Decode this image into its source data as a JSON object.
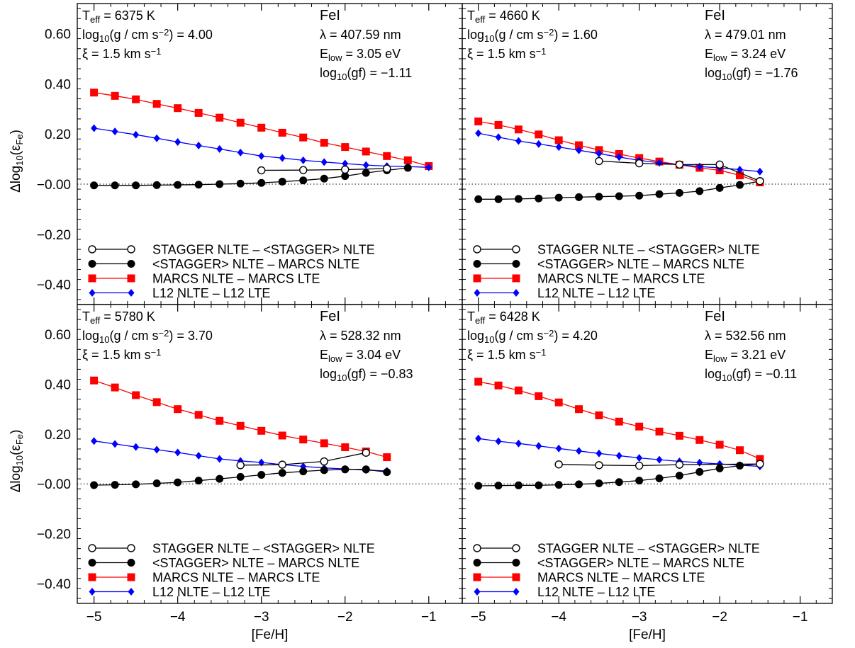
{
  "legend_entries": [
    {
      "label": "STAGGER NLTE – <STAGGER> NLTE",
      "color": "#000000",
      "marker": "open-circle"
    },
    {
      "label": "<STAGGER> NLTE – MARCS NLTE",
      "color": "#000000",
      "marker": "filled-circle"
    },
    {
      "label": "MARCS NLTE – MARCS LTE",
      "color": "#ff0000",
      "marker": "square"
    },
    {
      "label": "L12 NLTE – L12 LTE",
      "color": "#0000ff",
      "marker": "diamond"
    }
  ],
  "chart_data": [
    {
      "type": "line",
      "xlabel": "[Fe/H]",
      "ylabel": "Δlog10(εFe)",
      "xlim": [
        -5.2,
        -0.6
      ],
      "ylim": [
        -0.48,
        0.72
      ],
      "xticks": [
        -5,
        -4,
        -3,
        -2,
        -1
      ],
      "yticks": [
        0.6,
        0.4,
        0.2,
        0.0,
        -0.2,
        -0.4
      ],
      "ytick_labels": [
        "0.60",
        "0.40",
        "0.20",
        "−0.00",
        "−0.20",
        "−0.40"
      ],
      "zero_line": "dotted",
      "grid": false,
      "legend_position": "bottom-left",
      "params": {
        "teff": "T_eff = 6375 K",
        "logg": "log10(g / cm s⁻²) = 4.00",
        "xi": "ξ = 1.5 km s⁻¹"
      },
      "line_info": {
        "species": "FeI",
        "lambda": "λ = 407.59 nm",
        "elow": "E_low =  3.05 eV",
        "loggf": "log10(gf) = −1.11"
      },
      "series": [
        {
          "name": "STAGGER NLTE – <STAGGER> NLTE",
          "x": [
            -3.0,
            -2.5,
            -2.0,
            -1.5
          ],
          "y": [
            0.055,
            0.056,
            0.058,
            0.062
          ]
        },
        {
          "name": "<STAGGER> NLTE – MARCS NLTE",
          "x": [
            -5.0,
            -4.75,
            -4.5,
            -4.25,
            -4.0,
            -3.75,
            -3.5,
            -3.25,
            -3.0,
            -2.75,
            -2.5,
            -2.25,
            -2.0,
            -1.75,
            -1.5,
            -1.25
          ],
          "y": [
            -0.005,
            -0.005,
            -0.005,
            -0.004,
            -0.003,
            -0.002,
            0.0,
            0.002,
            0.005,
            0.01,
            0.015,
            0.022,
            0.032,
            0.045,
            0.055,
            0.065
          ]
        },
        {
          "name": "MARCS NLTE – MARCS LTE",
          "x": [
            -5.0,
            -4.75,
            -4.5,
            -4.25,
            -4.0,
            -3.75,
            -3.5,
            -3.25,
            -3.0,
            -2.75,
            -2.5,
            -2.25,
            -2.0,
            -1.75,
            -1.5,
            -1.25,
            -1.0
          ],
          "y": [
            0.365,
            0.352,
            0.338,
            0.32,
            0.303,
            0.284,
            0.265,
            0.245,
            0.225,
            0.205,
            0.186,
            0.165,
            0.148,
            0.13,
            0.112,
            0.095,
            0.072
          ]
        },
        {
          "name": "L12 NLTE – L12 LTE",
          "x": [
            -5.0,
            -4.75,
            -4.5,
            -4.25,
            -4.0,
            -3.75,
            -3.5,
            -3.25,
            -3.0,
            -2.75,
            -2.5,
            -2.25,
            -2.0,
            -1.75,
            -1.5,
            -1.25,
            -1.0
          ],
          "y": [
            0.223,
            0.21,
            0.197,
            0.183,
            0.168,
            0.154,
            0.14,
            0.126,
            0.112,
            0.104,
            0.095,
            0.088,
            0.082,
            0.076,
            0.072,
            0.07,
            0.067
          ]
        }
      ]
    },
    {
      "type": "line",
      "xlabel": "[Fe/H]",
      "ylabel": "Δlog10(εFe)",
      "xlim": [
        -5.2,
        -0.6
      ],
      "ylim": [
        -0.48,
        0.72
      ],
      "xticks": [
        -5,
        -4,
        -3,
        -2,
        -1
      ],
      "yticks": [
        0.6,
        0.4,
        0.2,
        0.0,
        -0.2,
        -0.4
      ],
      "ytick_labels": [
        "0.60",
        "0.40",
        "0.20",
        "−0.00",
        "−0.20",
        "−0.40"
      ],
      "zero_line": "dotted",
      "grid": false,
      "legend_position": "bottom-left",
      "params": {
        "teff": "T_eff = 4660 K",
        "logg": "log10(g / cm s⁻²) = 1.60",
        "xi": "ξ = 1.5 km s⁻¹"
      },
      "line_info": {
        "species": "FeI",
        "lambda": "λ = 479.01 nm",
        "elow": "E_low =  3.24 eV",
        "loggf": "log10(gf) = −1.76"
      },
      "series": [
        {
          "name": "STAGGER NLTE – <STAGGER> NLTE",
          "x": [
            -3.5,
            -3.0,
            -2.5,
            -2.0,
            -1.5
          ],
          "y": [
            0.092,
            0.083,
            0.078,
            0.078,
            0.012
          ]
        },
        {
          "name": "<STAGGER> NLTE – MARCS NLTE",
          "x": [
            -5.0,
            -4.75,
            -4.5,
            -4.25,
            -4.0,
            -3.75,
            -3.5,
            -3.25,
            -3.0,
            -2.75,
            -2.5,
            -2.25,
            -2.0,
            -1.75,
            -1.5
          ],
          "y": [
            -0.06,
            -0.06,
            -0.059,
            -0.057,
            -0.054,
            -0.052,
            -0.05,
            -0.048,
            -0.046,
            -0.04,
            -0.035,
            -0.028,
            -0.015,
            -0.003,
            0.012
          ]
        },
        {
          "name": "MARCS NLTE – MARCS LTE",
          "x": [
            -5.0,
            -4.75,
            -4.5,
            -4.25,
            -4.0,
            -3.75,
            -3.5,
            -3.25,
            -3.0,
            -2.75,
            -2.5,
            -2.25,
            -2.0,
            -1.75,
            -1.5
          ],
          "y": [
            0.25,
            0.236,
            0.218,
            0.198,
            0.175,
            0.155,
            0.136,
            0.12,
            0.104,
            0.09,
            0.077,
            0.065,
            0.055,
            0.035,
            0.007
          ]
        },
        {
          "name": "L12 NLTE – L12 LTE",
          "x": [
            -5.0,
            -4.75,
            -4.5,
            -4.25,
            -4.0,
            -3.75,
            -3.5,
            -3.25,
            -3.0,
            -2.75,
            -2.5,
            -2.25,
            -2.0,
            -1.75,
            -1.5
          ],
          "y": [
            0.203,
            0.187,
            0.172,
            0.16,
            0.148,
            0.135,
            0.122,
            0.108,
            0.095,
            0.085,
            0.077,
            0.07,
            0.065,
            0.058,
            0.05
          ]
        }
      ]
    },
    {
      "type": "line",
      "xlabel": "[Fe/H]",
      "ylabel": "Δlog10(εFe)",
      "xlim": [
        -5.2,
        -0.6
      ],
      "ylim": [
        -0.48,
        0.72
      ],
      "xticks": [
        -5,
        -4,
        -3,
        -2,
        -1
      ],
      "yticks": [
        0.6,
        0.4,
        0.2,
        0.0,
        -0.2,
        -0.4
      ],
      "ytick_labels": [
        "0.60",
        "0.40",
        "0.20",
        "−0.00",
        "−0.20",
        "−0.40"
      ],
      "zero_line": "dotted",
      "grid": false,
      "legend_position": "bottom-left",
      "params": {
        "teff": "T_eff = 5780 K",
        "logg": "log10(g / cm s⁻²) = 3.70",
        "xi": "ξ = 1.5 km s⁻¹"
      },
      "line_info": {
        "species": "FeI",
        "lambda": "λ = 528.32 nm",
        "elow": "E_low =  3.04 eV",
        "loggf": "log10(gf) = −0.83"
      },
      "series": [
        {
          "name": "STAGGER NLTE – <STAGGER> NLTE",
          "x": [
            -3.25,
            -2.75,
            -2.25,
            -1.75
          ],
          "y": [
            0.075,
            0.077,
            0.09,
            0.125
          ]
        },
        {
          "name": "<STAGGER> NLTE – MARCS NLTE",
          "x": [
            -5.0,
            -4.75,
            -4.5,
            -4.25,
            -4.0,
            -3.75,
            -3.5,
            -3.25,
            -3.0,
            -2.75,
            -2.5,
            -2.25,
            -2.0,
            -1.75,
            -1.5
          ],
          "y": [
            -0.005,
            -0.004,
            -0.002,
            0.002,
            0.006,
            0.013,
            0.02,
            0.028,
            0.036,
            0.044,
            0.05,
            0.055,
            0.058,
            0.058,
            0.047
          ]
        },
        {
          "name": "MARCS NLTE – MARCS LTE",
          "x": [
            -5.0,
            -4.75,
            -4.5,
            -4.25,
            -4.0,
            -3.75,
            -3.5,
            -3.25,
            -3.0,
            -2.75,
            -2.5,
            -2.25,
            -2.0,
            -1.75,
            -1.5
          ],
          "y": [
            0.415,
            0.387,
            0.356,
            0.328,
            0.3,
            0.277,
            0.253,
            0.233,
            0.213,
            0.194,
            0.178,
            0.163,
            0.147,
            0.13,
            0.107
          ]
        },
        {
          "name": "L12 NLTE – L12 LTE",
          "x": [
            -5.0,
            -4.75,
            -4.5,
            -4.25,
            -4.0,
            -3.75,
            -3.5,
            -3.25,
            -3.0,
            -2.75,
            -2.5,
            -2.25,
            -2.0,
            -1.75,
            -1.5
          ],
          "y": [
            0.172,
            0.16,
            0.148,
            0.137,
            0.126,
            0.113,
            0.1,
            0.092,
            0.086,
            0.077,
            0.07,
            0.064,
            0.06,
            0.055,
            0.052
          ]
        }
      ]
    },
    {
      "type": "line",
      "xlabel": "[Fe/H]",
      "ylabel": "Δlog10(εFe)",
      "xlim": [
        -5.2,
        -0.6
      ],
      "ylim": [
        -0.48,
        0.72
      ],
      "xticks": [
        -5,
        -4,
        -3,
        -2,
        -1
      ],
      "yticks": [
        0.6,
        0.4,
        0.2,
        0.0,
        -0.2,
        -0.4
      ],
      "ytick_labels": [
        "0.60",
        "0.40",
        "0.20",
        "−0.00",
        "−0.20",
        "−0.40"
      ],
      "zero_line": "dotted",
      "grid": false,
      "legend_position": "bottom-left",
      "params": {
        "teff": "T_eff = 6428 K",
        "logg": "log10(g / cm s⁻²) = 4.20",
        "xi": "ξ = 1.5 km s⁻¹"
      },
      "line_info": {
        "species": "FeI",
        "lambda": "λ = 532.56 nm",
        "elow": "E_low =  3.21 eV",
        "loggf": "log10(gf) = −0.11"
      },
      "series": [
        {
          "name": "STAGGER NLTE – <STAGGER> NLTE",
          "x": [
            -4.0,
            -3.5,
            -3.0,
            -2.5,
            -1.5
          ],
          "y": [
            0.078,
            0.075,
            0.073,
            0.077,
            0.08
          ]
        },
        {
          "name": "<STAGGER> NLTE – MARCS NLTE",
          "x": [
            -5.0,
            -4.75,
            -4.5,
            -4.25,
            -4.0,
            -3.75,
            -3.5,
            -3.25,
            -3.0,
            -2.75,
            -2.5,
            -2.25,
            -2.0,
            -1.75,
            -1.5
          ],
          "y": [
            -0.008,
            -0.007,
            -0.006,
            -0.006,
            -0.004,
            -0.002,
            0.002,
            0.007,
            0.013,
            0.022,
            0.033,
            0.048,
            0.062,
            0.073,
            0.08
          ]
        },
        {
          "name": "MARCS NLTE – MARCS LTE",
          "x": [
            -5.0,
            -4.75,
            -4.5,
            -4.25,
            -4.0,
            -3.75,
            -3.5,
            -3.25,
            -3.0,
            -2.75,
            -2.5,
            -2.25,
            -2.0,
            -1.75,
            -1.5
          ],
          "y": [
            0.41,
            0.395,
            0.375,
            0.352,
            0.327,
            0.3,
            0.275,
            0.25,
            0.23,
            0.21,
            0.193,
            0.176,
            0.157,
            0.135,
            0.1
          ]
        },
        {
          "name": "L12 NLTE – L12 LTE",
          "x": [
            -5.0,
            -4.75,
            -4.5,
            -4.25,
            -4.0,
            -3.75,
            -3.5,
            -3.25,
            -3.0,
            -2.75,
            -2.5,
            -2.25,
            -2.0,
            -1.75,
            -1.5
          ],
          "y": [
            0.182,
            0.171,
            0.162,
            0.152,
            0.142,
            0.132,
            0.122,
            0.113,
            0.104,
            0.097,
            0.09,
            0.085,
            0.08,
            0.075,
            0.07
          ]
        }
      ]
    }
  ]
}
